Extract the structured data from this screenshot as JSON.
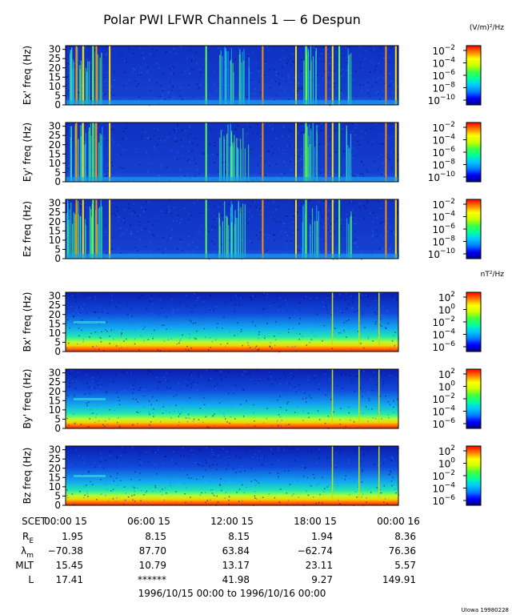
{
  "title": "Polar PWI LFWR Channels 1 — 6 Despun",
  "units": {
    "electric": "(V/m)²/Hz",
    "magnetic": "nT²/Hz"
  },
  "chart_data": {
    "type": "heatmap",
    "time_range": "1996/10/15 00:00 to 1996/10/16 00:00",
    "x_tick_labels": [
      "00:00 15",
      "06:00 15",
      "12:00 15",
      "18:00 15",
      "00:00 16"
    ],
    "x_prefix": "SCET",
    "y_ticks": [
      0,
      5,
      10,
      15,
      20,
      25,
      30
    ],
    "ylim": [
      0,
      32
    ],
    "colormap": [
      "#000080",
      "#0000ff",
      "#0080ff",
      "#00c8ff",
      "#00ffa0",
      "#40ff40",
      "#c8ff00",
      "#ffff00",
      "#ff8000",
      "#ff0000"
    ],
    "panels": [
      {
        "ylabel": "Ex' freq (Hz)",
        "kind": "electric",
        "unit": "electric",
        "cb_ticks": [
          "10",
          "10",
          "10",
          "10",
          "10"
        ],
        "cb_exps": [
          "−2",
          "−4",
          "−6",
          "−8",
          "−10"
        ]
      },
      {
        "ylabel": "Ey' freq (Hz)",
        "kind": "electric",
        "unit": null,
        "cb_ticks": [
          "10",
          "10",
          "10",
          "10",
          "10"
        ],
        "cb_exps": [
          "−2",
          "−4",
          "−6",
          "−8",
          "−10"
        ]
      },
      {
        "ylabel": "Ez freq (Hz)",
        "kind": "electric",
        "unit": null,
        "cb_ticks": [
          "10",
          "10",
          "10",
          "10",
          "10"
        ],
        "cb_exps": [
          "−2",
          "−4",
          "−6",
          "−8",
          "−10"
        ]
      },
      {
        "ylabel": "Bx' freq (Hz)",
        "kind": "magnetic",
        "unit": "magnetic",
        "cb_ticks": [
          "10",
          "10",
          "10",
          "10",
          "10"
        ],
        "cb_exps": [
          "2",
          "0",
          "−2",
          "−4",
          "−6"
        ]
      },
      {
        "ylabel": "By' freq (Hz)",
        "kind": "magnetic",
        "unit": null,
        "cb_ticks": [
          "10",
          "10",
          "10",
          "10",
          "10"
        ],
        "cb_exps": [
          "2",
          "0",
          "−2",
          "−4",
          "−6"
        ]
      },
      {
        "ylabel": "Bz freq (Hz)",
        "kind": "magnetic",
        "unit": null,
        "cb_ticks": [
          "10",
          "10",
          "10",
          "10",
          "10"
        ],
        "cb_exps": [
          "2",
          "0",
          "−2",
          "−4",
          "−6"
        ]
      }
    ],
    "ephemeris": [
      {
        "label": "R",
        "sub": "E",
        "values": [
          "1.95",
          "8.15",
          "8.15",
          "1.94",
          "8.36"
        ]
      },
      {
        "label": "λ",
        "sub": "m",
        "values": [
          "−70.38",
          "87.70",
          "63.84",
          "−62.74",
          "76.36"
        ]
      },
      {
        "label": "MLT",
        "sub": "",
        "values": [
          "15.45",
          "10.79",
          "13.17",
          "23.11",
          "5.57"
        ]
      },
      {
        "label": "L",
        "sub": "",
        "values": [
          "17.41",
          "******",
          "41.98",
          "9.27",
          "149.91"
        ]
      }
    ]
  },
  "footer_stamp": "UIowa 19980228"
}
